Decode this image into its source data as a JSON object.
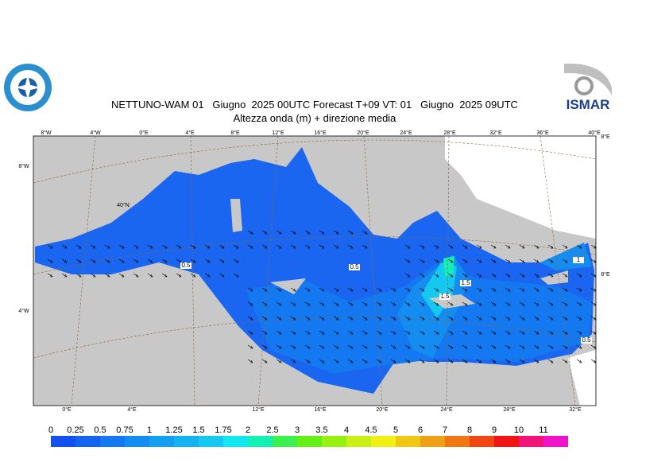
{
  "header": {
    "title": "NETTUNO-WAM 01   Giugno  2025 00UTC Forecast T+09 VT: 01   Giugno  2025 09UTC",
    "subtitle": "Altezza onda (m) + direzione media",
    "logo_right": "ISMAR"
  },
  "map": {
    "top_labels": [
      "8°W",
      "4°W",
      "0°E",
      "4°E",
      "8°E",
      "12°E",
      "16°E",
      "20°E",
      "24°E",
      "28°E",
      "32°E",
      "36°E",
      "40°E"
    ],
    "bottom_labels": [
      "0°E",
      "4°E",
      "12°E",
      "16°E",
      "20°E",
      "24°E",
      "28°E",
      "32°E"
    ],
    "left_labels": [
      "8°W",
      "4°W"
    ],
    "inner_labels": [
      "40°N"
    ],
    "right_labels": [
      "8°E",
      "8°E"
    ],
    "contour_labels": [
      "0.5",
      "0.5",
      "1.5",
      "1.5",
      "1",
      "0.5"
    ]
  },
  "colorbar": {
    "ticks": [
      0,
      0.25,
      0.5,
      0.75,
      1,
      1.25,
      1.5,
      1.75,
      2,
      2.5,
      3,
      3.5,
      4,
      4.5,
      5,
      6,
      7,
      8,
      9,
      10,
      11
    ],
    "colors": [
      "#1450f0",
      "#1464f0",
      "#1478f0",
      "#148cf0",
      "#14a0f0",
      "#14b4f0",
      "#14c8f0",
      "#14e6f0",
      "#14f0b4",
      "#3cf050",
      "#64f014",
      "#96f014",
      "#c8f014",
      "#f0f014",
      "#f0c814",
      "#f0a014",
      "#f07814",
      "#f04614",
      "#f01414",
      "#f01478",
      "#f014c8"
    ]
  }
}
